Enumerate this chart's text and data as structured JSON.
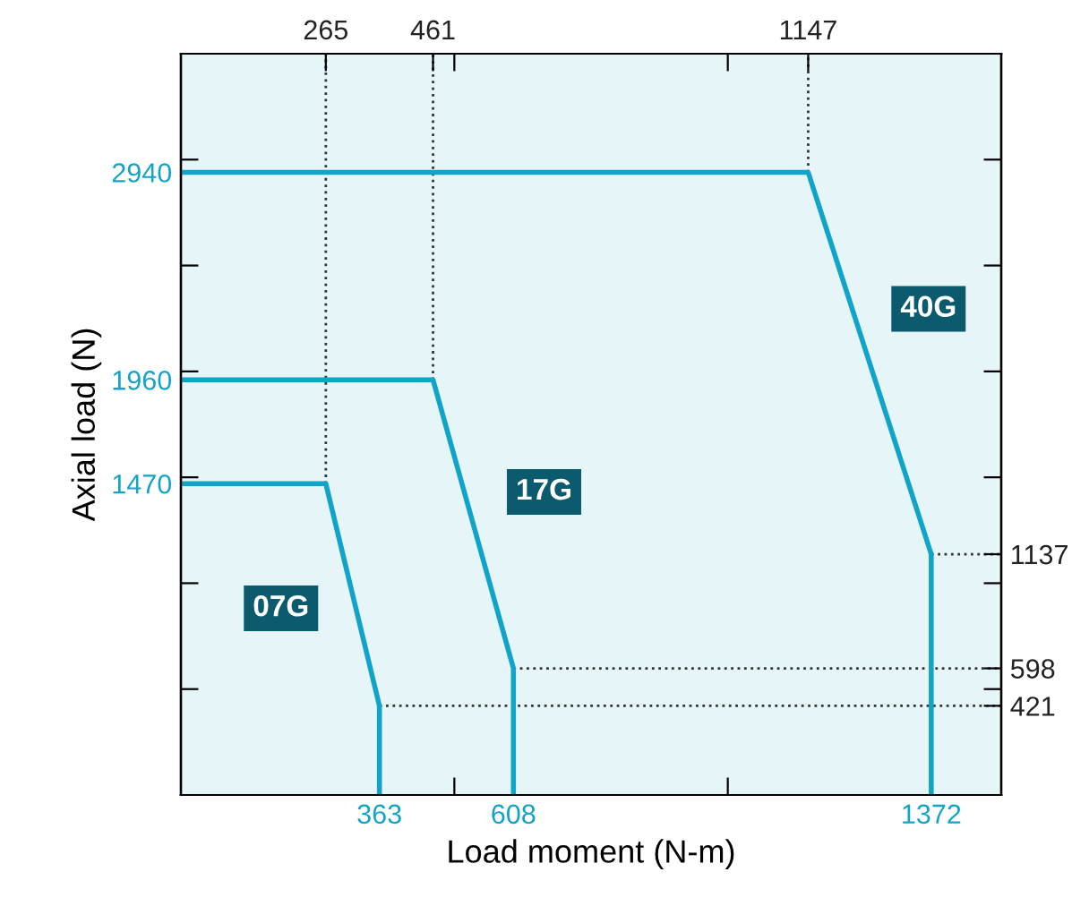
{
  "chart_data": {
    "type": "line",
    "xlabel": "Load moment (N-m)",
    "ylabel": "Axial load (N)",
    "series": [
      {
        "color": "#12a3c8",
        "x": [
          0,
          265,
          363,
          363
        ],
        "values": [
          1470,
          1470,
          421,
          0
        ]
      },
      {
        "color": "#12a3c8",
        "x": [
          0,
          461,
          608,
          608
        ],
        "values": [
          1960,
          1960,
          598,
          0
        ]
      },
      {
        "color": "#12a3c8",
        "x": [
          0,
          1147,
          1372,
          1372
        ],
        "values": [
          2940,
          2940,
          1137,
          0
        ]
      }
    ],
    "xlim": [
      0,
      1500
    ],
    "ylim": [
      0,
      3500
    ],
    "xticks": [
      363,
      {
        "value": 500,
        "label": null
      },
      608,
      {
        "value": 1000,
        "label": null
      },
      1372
    ],
    "x2lim": [
      0,
      1500
    ],
    "x2ticks": [
      265,
      461,
      {
        "value": 500,
        "label": null
      },
      {
        "value": 1000,
        "label": null
      },
      1147
    ],
    "yticks": [
      {
        "value": 500,
        "label": null
      },
      {
        "value": 1000,
        "label": null
      },
      1470,
      {
        "value": 1500,
        "label": null
      },
      1960,
      {
        "value": 2000,
        "label": null
      },
      {
        "value": 2500,
        "label": null
      },
      2940,
      {
        "value": 3000,
        "label": null
      }
    ],
    "y2lim": [
      0,
      3500
    ],
    "y2ticks": [
      421,
      {
        "value": 500,
        "label": null
      },
      598,
      {
        "value": 1000,
        "label": null
      },
      1137,
      {
        "value": 1500,
        "label": null
      },
      {
        "value": 2000,
        "label": null
      },
      {
        "value": 2500,
        "label": null
      },
      {
        "value": 3000,
        "label": null
      }
    ],
    "ref_lines": [
      {
        "axis": "x",
        "value": 265,
        "line_style": "dotted",
        "color": "#333333"
      },
      {
        "axis": "x",
        "value": 461,
        "line_style": "dotted",
        "color": "#333333"
      },
      {
        "axis": "x",
        "value": 1147,
        "line_style": "dotted",
        "color": "#333333"
      },
      {
        "axis": "y",
        "value": 421,
        "line_style": "dotted",
        "color": "#333333"
      },
      {
        "axis": "y",
        "value": 598,
        "line_style": "dotted",
        "color": "#333333"
      },
      {
        "axis": "y",
        "value": 1137,
        "line_style": "dotted",
        "color": "#333333"
      }
    ],
    "annotations": [
      {
        "text": "07G",
        "x": 183,
        "y": 881
      },
      {
        "text": "17G",
        "x": 664,
        "y": 1431
      },
      {
        "text": "40G",
        "x": 1367,
        "y": 2295
      }
    ],
    "grid": false,
    "legend": false,
    "marker": "none",
    "line_style": "solid"
  }
}
